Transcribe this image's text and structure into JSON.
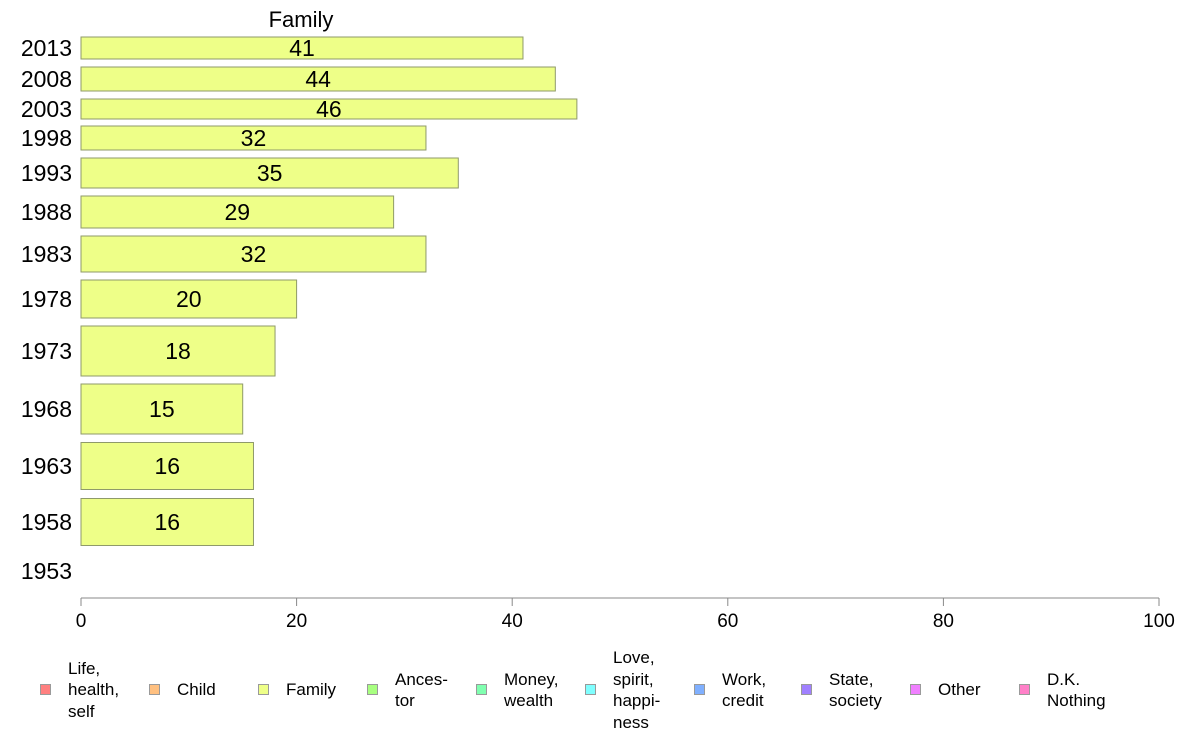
{
  "chart_data": {
    "type": "bar",
    "orientation": "horizontal",
    "title": "Family",
    "categories": [
      "2013",
      "2008",
      "2003",
      "1998",
      "1993",
      "1988",
      "1983",
      "1978",
      "1973",
      "1968",
      "1963",
      "1958",
      "1953"
    ],
    "series": [
      {
        "name": "Family",
        "values": [
          41,
          44,
          46,
          32,
          35,
          29,
          32,
          20,
          18,
          15,
          16,
          16,
          null
        ],
        "color": "#eeff88"
      }
    ],
    "data_labels": [
      "41",
      "44",
      "46",
      "32",
      "35",
      "29",
      "32",
      "20",
      "18",
      "15",
      "16",
      "16",
      ""
    ],
    "xlim": [
      0,
      100
    ],
    "x_ticks": [
      "0",
      "20",
      "40",
      "60",
      "80",
      "100"
    ],
    "grid": false,
    "legend_position": "bottom"
  },
  "legend": [
    {
      "label": "Life,\nhealth,\nself",
      "color": "#ff8080"
    },
    {
      "label": "Child",
      "color": "#ffc080"
    },
    {
      "label": "Family",
      "color": "#eeff88"
    },
    {
      "label": "Ances-\ntor",
      "color": "#a8ff80"
    },
    {
      "label": "Money,\nwealth",
      "color": "#80ffb0"
    },
    {
      "label": "Love,\nspirit,\nhappi-\nness",
      "color": "#80ffff"
    },
    {
      "label": "Work,\ncredit",
      "color": "#80b0ff"
    },
    {
      "label": "State,\nsociety",
      "color": "#a080ff"
    },
    {
      "label": "Other",
      "color": "#f080ff"
    },
    {
      "label": "D.K.\nNothing",
      "color": "#ff80c8"
    }
  ]
}
